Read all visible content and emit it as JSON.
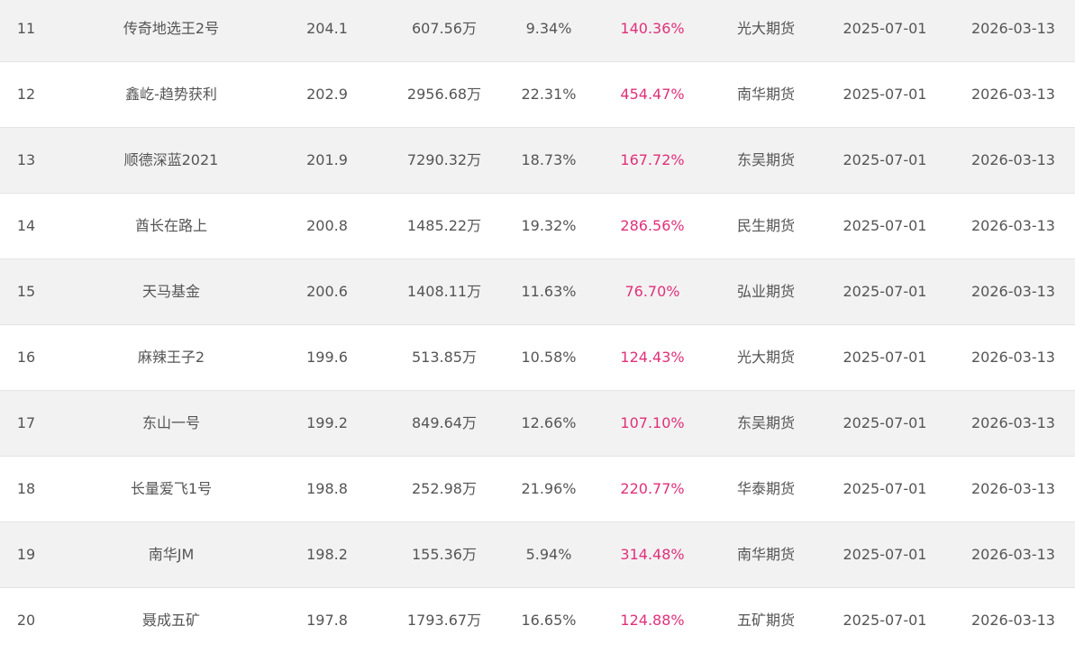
{
  "table": {
    "rows": [
      {
        "rank": "11",
        "name": "传奇地选王2号",
        "score": "204.1",
        "scale": "607.56万",
        "return": "9.34%",
        "cumulative": "140.36%",
        "broker": "光大期货",
        "start": "2025-07-01",
        "end": "2026-03-13"
      },
      {
        "rank": "12",
        "name": "鑫屹-趋势获利",
        "score": "202.9",
        "scale": "2956.68万",
        "return": "22.31%",
        "cumulative": "454.47%",
        "broker": "南华期货",
        "start": "2025-07-01",
        "end": "2026-03-13"
      },
      {
        "rank": "13",
        "name": "顺德深蓝2021",
        "score": "201.9",
        "scale": "7290.32万",
        "return": "18.73%",
        "cumulative": "167.72%",
        "broker": "东吴期货",
        "start": "2025-07-01",
        "end": "2026-03-13"
      },
      {
        "rank": "14",
        "name": "酋长在路上",
        "score": "200.8",
        "scale": "1485.22万",
        "return": "19.32%",
        "cumulative": "286.56%",
        "broker": "民生期货",
        "start": "2025-07-01",
        "end": "2026-03-13"
      },
      {
        "rank": "15",
        "name": "天马基金",
        "score": "200.6",
        "scale": "1408.11万",
        "return": "11.63%",
        "cumulative": "76.70%",
        "broker": "弘业期货",
        "start": "2025-07-01",
        "end": "2026-03-13"
      },
      {
        "rank": "16",
        "name": "麻辣王子2",
        "score": "199.6",
        "scale": "513.85万",
        "return": "10.58%",
        "cumulative": "124.43%",
        "broker": "光大期货",
        "start": "2025-07-01",
        "end": "2026-03-13"
      },
      {
        "rank": "17",
        "name": "东山一号",
        "score": "199.2",
        "scale": "849.64万",
        "return": "12.66%",
        "cumulative": "107.10%",
        "broker": "东吴期货",
        "start": "2025-07-01",
        "end": "2026-03-13"
      },
      {
        "rank": "18",
        "name": "长量爱飞1号",
        "score": "198.8",
        "scale": "252.98万",
        "return": "21.96%",
        "cumulative": "220.77%",
        "broker": "华泰期货",
        "start": "2025-07-01",
        "end": "2026-03-13"
      },
      {
        "rank": "19",
        "name": "南华JM",
        "score": "198.2",
        "scale": "155.36万",
        "return": "5.94%",
        "cumulative": "314.48%",
        "broker": "南华期货",
        "start": "2025-07-01",
        "end": "2026-03-13"
      },
      {
        "rank": "20",
        "name": "聂成五矿",
        "score": "197.8",
        "scale": "1793.67万",
        "return": "16.65%",
        "cumulative": "124.88%",
        "broker": "五矿期货",
        "start": "2025-07-01",
        "end": "2026-03-13"
      }
    ]
  },
  "colors": {
    "stripe": "#f2f2f2",
    "text": "#555555",
    "accent": "#e0307a"
  }
}
